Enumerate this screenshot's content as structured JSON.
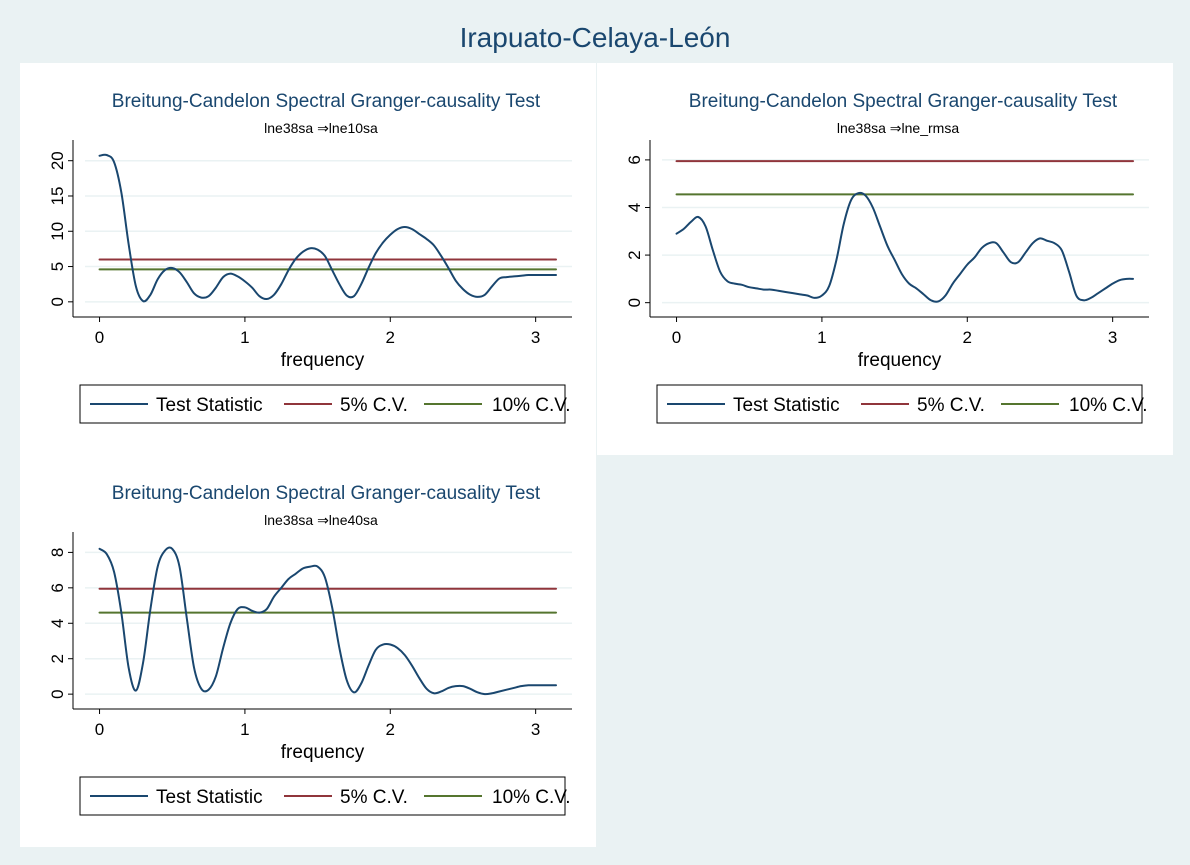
{
  "page": {
    "title": "Irapuato-Celaya-León"
  },
  "colors": {
    "background": "#eaf2f3",
    "title": "#1a476f",
    "test_statistic": "#1a476f",
    "cv5": "#90353b",
    "cv10": "#55752f",
    "grid": "#eaf2f3"
  },
  "chart_data": [
    {
      "type": "line",
      "title": "Breitung-Candelon Spectral Granger-causality Test",
      "subtitle": "lne38sa ⇒lne10sa",
      "xlabel": "frequency",
      "ylabel": "",
      "xlim": [
        -0.1,
        3.25
      ],
      "ylim": [
        -1.3,
        21.8
      ],
      "xticks": [
        0,
        1,
        2,
        3
      ],
      "yticks": [
        0,
        5,
        10,
        15,
        20
      ],
      "grid": true,
      "legend_position": "bottom",
      "legend": [
        "Test Statistic",
        "5% C.V.",
        "10% C.V."
      ],
      "series": [
        {
          "name": "Test Statistic",
          "x": [
            0,
            0.05,
            0.1,
            0.15,
            0.2,
            0.25,
            0.3,
            0.35,
            0.4,
            0.45,
            0.5,
            0.55,
            0.6,
            0.65,
            0.7,
            0.75,
            0.8,
            0.85,
            0.9,
            0.95,
            1,
            1.05,
            1.1,
            1.15,
            1.2,
            1.25,
            1.3,
            1.35,
            1.4,
            1.45,
            1.5,
            1.55,
            1.6,
            1.65,
            1.7,
            1.75,
            1.8,
            1.85,
            1.9,
            1.95,
            2,
            2.05,
            2.1,
            2.15,
            2.2,
            2.25,
            2.3,
            2.35,
            2.4,
            2.45,
            2.5,
            2.55,
            2.6,
            2.65,
            2.7,
            2.75,
            2.8,
            2.85,
            2.9,
            2.95,
            3,
            3.05,
            3.1,
            3.14
          ],
          "values": [
            20.7,
            20.8,
            19.8,
            15.5,
            8.2,
            2.2,
            0.1,
            1.0,
            3.2,
            4.5,
            4.8,
            4.2,
            2.8,
            1.2,
            0.6,
            0.8,
            2.0,
            3.5,
            4.0,
            3.6,
            2.9,
            2.0,
            0.8,
            0.4,
            1.0,
            2.5,
            4.5,
            6.1,
            7.1,
            7.6,
            7.4,
            6.5,
            4.5,
            2.5,
            0.9,
            0.8,
            2.5,
            4.8,
            6.9,
            8.4,
            9.5,
            10.3,
            10.6,
            10.3,
            9.6,
            8.9,
            8.0,
            6.5,
            4.8,
            3.0,
            1.8,
            1.0,
            0.7,
            1.0,
            2.2,
            3.3,
            3.5,
            3.6,
            3.7,
            3.8,
            3.8,
            3.8,
            3.8,
            3.8
          ]
        },
        {
          "name": "5% C.V.",
          "x": [
            0,
            3.14
          ],
          "values": [
            6.0,
            6.0
          ]
        },
        {
          "name": "10% C.V.",
          "x": [
            0,
            3.14
          ],
          "values": [
            4.6,
            4.6
          ]
        }
      ]
    },
    {
      "type": "line",
      "title": "Breitung-Candelon Spectral Granger-causality Test",
      "subtitle": "lne38sa ⇒lne_rmsa",
      "xlabel": "frequency",
      "ylabel": "",
      "xlim": [
        -0.1,
        3.25
      ],
      "ylim": [
        -0.35,
        6.5
      ],
      "xticks": [
        0,
        1,
        2,
        3
      ],
      "yticks": [
        0,
        2,
        4,
        6
      ],
      "grid": true,
      "legend_position": "bottom",
      "legend": [
        "Test Statistic",
        "5% C.V.",
        "10% C.V."
      ],
      "series": [
        {
          "name": "Test Statistic",
          "x": [
            0,
            0.05,
            0.1,
            0.15,
            0.2,
            0.25,
            0.3,
            0.35,
            0.4,
            0.45,
            0.5,
            0.55,
            0.6,
            0.65,
            0.7,
            0.75,
            0.8,
            0.85,
            0.9,
            0.95,
            1,
            1.05,
            1.1,
            1.15,
            1.2,
            1.25,
            1.3,
            1.35,
            1.4,
            1.45,
            1.5,
            1.55,
            1.6,
            1.65,
            1.7,
            1.75,
            1.8,
            1.85,
            1.9,
            1.95,
            2,
            2.05,
            2.1,
            2.15,
            2.2,
            2.25,
            2.3,
            2.35,
            2.4,
            2.45,
            2.5,
            2.55,
            2.6,
            2.65,
            2.7,
            2.75,
            2.8,
            2.85,
            2.9,
            2.95,
            3,
            3.05,
            3.1,
            3.14
          ],
          "values": [
            2.9,
            3.1,
            3.4,
            3.6,
            3.2,
            2.2,
            1.3,
            0.9,
            0.8,
            0.75,
            0.65,
            0.6,
            0.55,
            0.55,
            0.5,
            0.45,
            0.4,
            0.35,
            0.3,
            0.2,
            0.3,
            0.7,
            1.8,
            3.3,
            4.3,
            4.6,
            4.5,
            4.0,
            3.2,
            2.4,
            1.8,
            1.2,
            0.8,
            0.6,
            0.35,
            0.1,
            0.05,
            0.3,
            0.8,
            1.2,
            1.6,
            1.9,
            2.3,
            2.5,
            2.5,
            2.1,
            1.7,
            1.7,
            2.1,
            2.5,
            2.7,
            2.6,
            2.5,
            2.2,
            1.3,
            0.3,
            0.1,
            0.2,
            0.4,
            0.6,
            0.8,
            0.95,
            1.0,
            1.0
          ]
        },
        {
          "name": "5% C.V.",
          "x": [
            0,
            3.14
          ],
          "values": [
            5.95,
            5.95
          ]
        },
        {
          "name": "10% C.V.",
          "x": [
            0,
            3.14
          ],
          "values": [
            4.55,
            4.55
          ]
        }
      ]
    },
    {
      "type": "line",
      "title": "Breitung-Candelon Spectral Granger-causality Test",
      "subtitle": "lne38sa ⇒lne40sa",
      "xlabel": "frequency",
      "ylabel": "",
      "xlim": [
        -0.1,
        3.25
      ],
      "ylim": [
        -0.5,
        8.7
      ],
      "xticks": [
        0,
        1,
        2,
        3
      ],
      "yticks": [
        0,
        2,
        4,
        6,
        8
      ],
      "grid": true,
      "legend_position": "bottom",
      "legend": [
        "Test Statistic",
        "5% C.V.",
        "10% C.V."
      ],
      "series": [
        {
          "name": "Test Statistic",
          "x": [
            0,
            0.05,
            0.1,
            0.15,
            0.2,
            0.25,
            0.3,
            0.35,
            0.4,
            0.45,
            0.5,
            0.55,
            0.6,
            0.65,
            0.7,
            0.75,
            0.8,
            0.85,
            0.9,
            0.95,
            1,
            1.05,
            1.1,
            1.15,
            1.2,
            1.25,
            1.3,
            1.35,
            1.4,
            1.45,
            1.5,
            1.55,
            1.6,
            1.65,
            1.7,
            1.75,
            1.8,
            1.85,
            1.9,
            1.95,
            2,
            2.05,
            2.1,
            2.15,
            2.2,
            2.25,
            2.3,
            2.35,
            2.4,
            2.45,
            2.5,
            2.55,
            2.6,
            2.65,
            2.7,
            2.75,
            2.8,
            2.85,
            2.9,
            2.95,
            3,
            3.05,
            3.1,
            3.14
          ],
          "values": [
            8.2,
            7.9,
            6.9,
            4.6,
            1.5,
            0.2,
            1.8,
            4.8,
            7.2,
            8.1,
            8.2,
            7.2,
            4.3,
            1.5,
            0.3,
            0.25,
            1.0,
            2.6,
            4.0,
            4.8,
            4.9,
            4.7,
            4.6,
            4.8,
            5.5,
            6.0,
            6.5,
            6.8,
            7.1,
            7.2,
            7.2,
            6.6,
            4.9,
            2.6,
            0.8,
            0.1,
            0.6,
            1.6,
            2.5,
            2.8,
            2.8,
            2.6,
            2.2,
            1.6,
            0.9,
            0.3,
            0.05,
            0.15,
            0.35,
            0.45,
            0.45,
            0.3,
            0.1,
            0.0,
            0.05,
            0.15,
            0.25,
            0.35,
            0.45,
            0.5,
            0.5,
            0.5,
            0.5,
            0.5
          ]
        },
        {
          "name": "5% C.V.",
          "x": [
            0,
            3.14
          ],
          "values": [
            5.95,
            5.95
          ]
        },
        {
          "name": "10% C.V.",
          "x": [
            0,
            3.14
          ],
          "values": [
            4.6,
            4.6
          ]
        }
      ]
    }
  ]
}
